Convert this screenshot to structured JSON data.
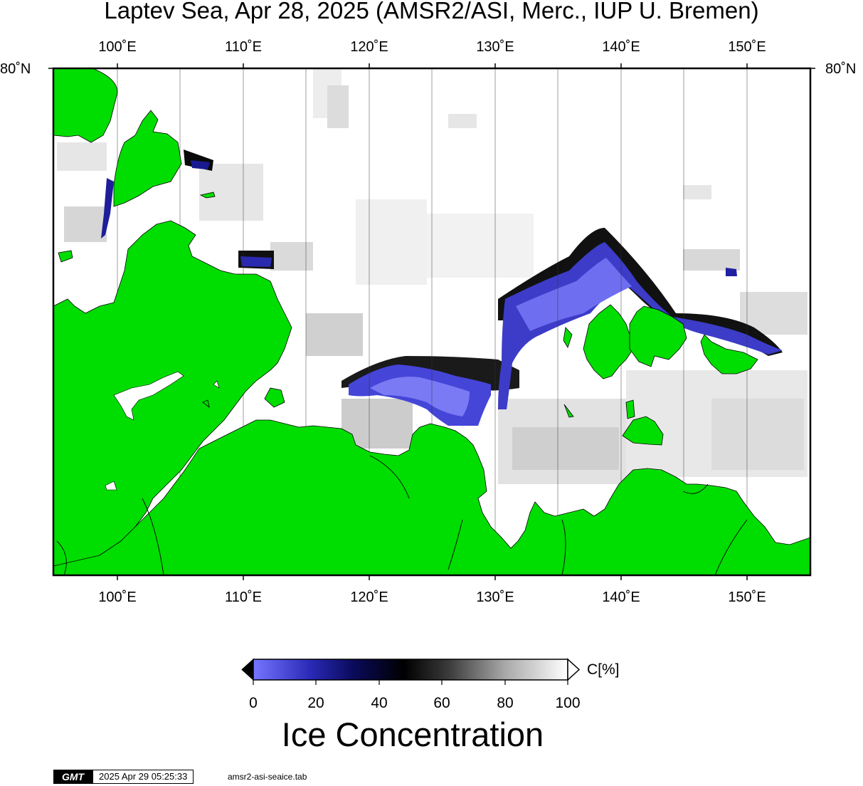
{
  "title": "Laptev Sea, Apr 28, 2025 (AMSR2/ASI, Merc., IUP U. Bremen)",
  "longitude_ticks": [
    "100˚E",
    "110˚E",
    "120˚E",
    "130˚E",
    "140˚E",
    "150˚E"
  ],
  "latitude_ticks": {
    "left": "80˚N",
    "right": "80˚N"
  },
  "colorbar": {
    "unit": "C[%]",
    "ticks": [
      "0",
      "20",
      "40",
      "60",
      "80",
      "100"
    ],
    "title": "Ice Concentration",
    "colors": {
      "low": "#7070ff",
      "mid_blue": "#0a0a70",
      "dark": "#000000",
      "light": "#ffffff"
    }
  },
  "colors": {
    "land": "#00dd00",
    "ice_full": "#ffffff",
    "ice_blue": "#5a5ae6",
    "ice_dark": "#000060"
  },
  "footer": {
    "logo": "GMT",
    "timestamp": "2025 Apr 29 05:25:33",
    "command": "amsr2-asi-seaice.tab"
  }
}
